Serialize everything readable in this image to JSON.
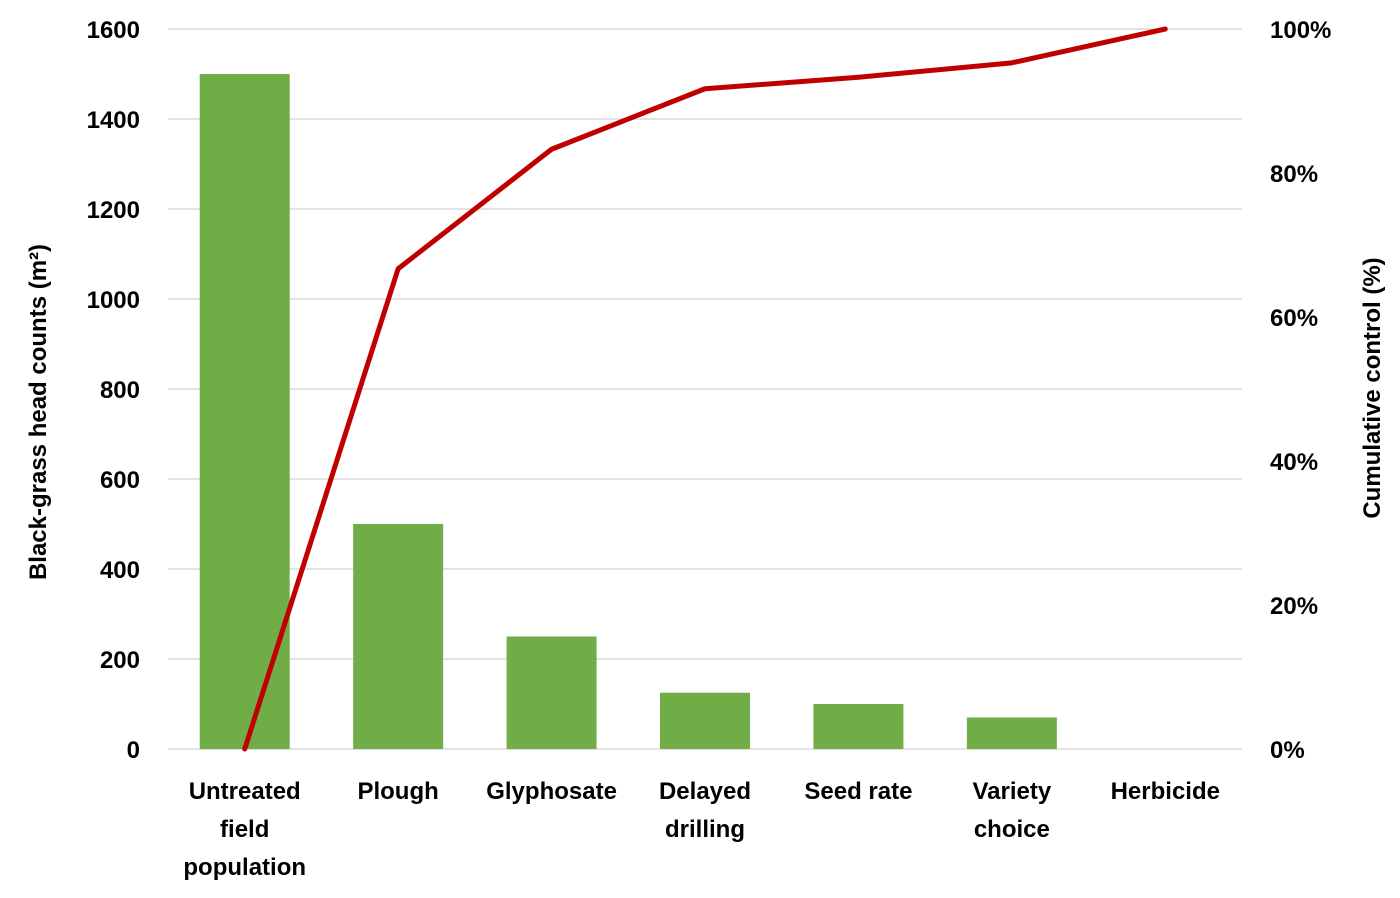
{
  "chart_data": {
    "type": "bar",
    "categories": [
      [
        "Untreated",
        "field",
        "population"
      ],
      [
        "Plough"
      ],
      [
        "Glyphosate"
      ],
      [
        "Delayed",
        "drilling"
      ],
      [
        "Seed rate"
      ],
      [
        "Variety",
        "choice"
      ],
      [
        "Herbicide"
      ]
    ],
    "series": [
      {
        "type": "bar",
        "axis": "left",
        "color": "#70ad47",
        "values": [
          1500,
          500,
          250,
          125,
          100,
          70,
          0
        ]
      },
      {
        "type": "line",
        "axis": "right",
        "color": "#c00000",
        "values": [
          0,
          66.7,
          83.3,
          91.7,
          93.3,
          95.3,
          100
        ]
      }
    ],
    "ylabel": "Black-grass head counts (m²)",
    "y2label": "Cumulative control (%)",
    "ylim": [
      0,
      1600
    ],
    "y_ticks": [
      "0",
      "200",
      "400",
      "600",
      "800",
      "1000",
      "1200",
      "1400",
      "1600"
    ],
    "y2lim": [
      0,
      100
    ],
    "y2_ticks": [
      "0%",
      "20%",
      "40%",
      "60%",
      "80%",
      "100%"
    ],
    "grid": true,
    "legend": "none"
  }
}
